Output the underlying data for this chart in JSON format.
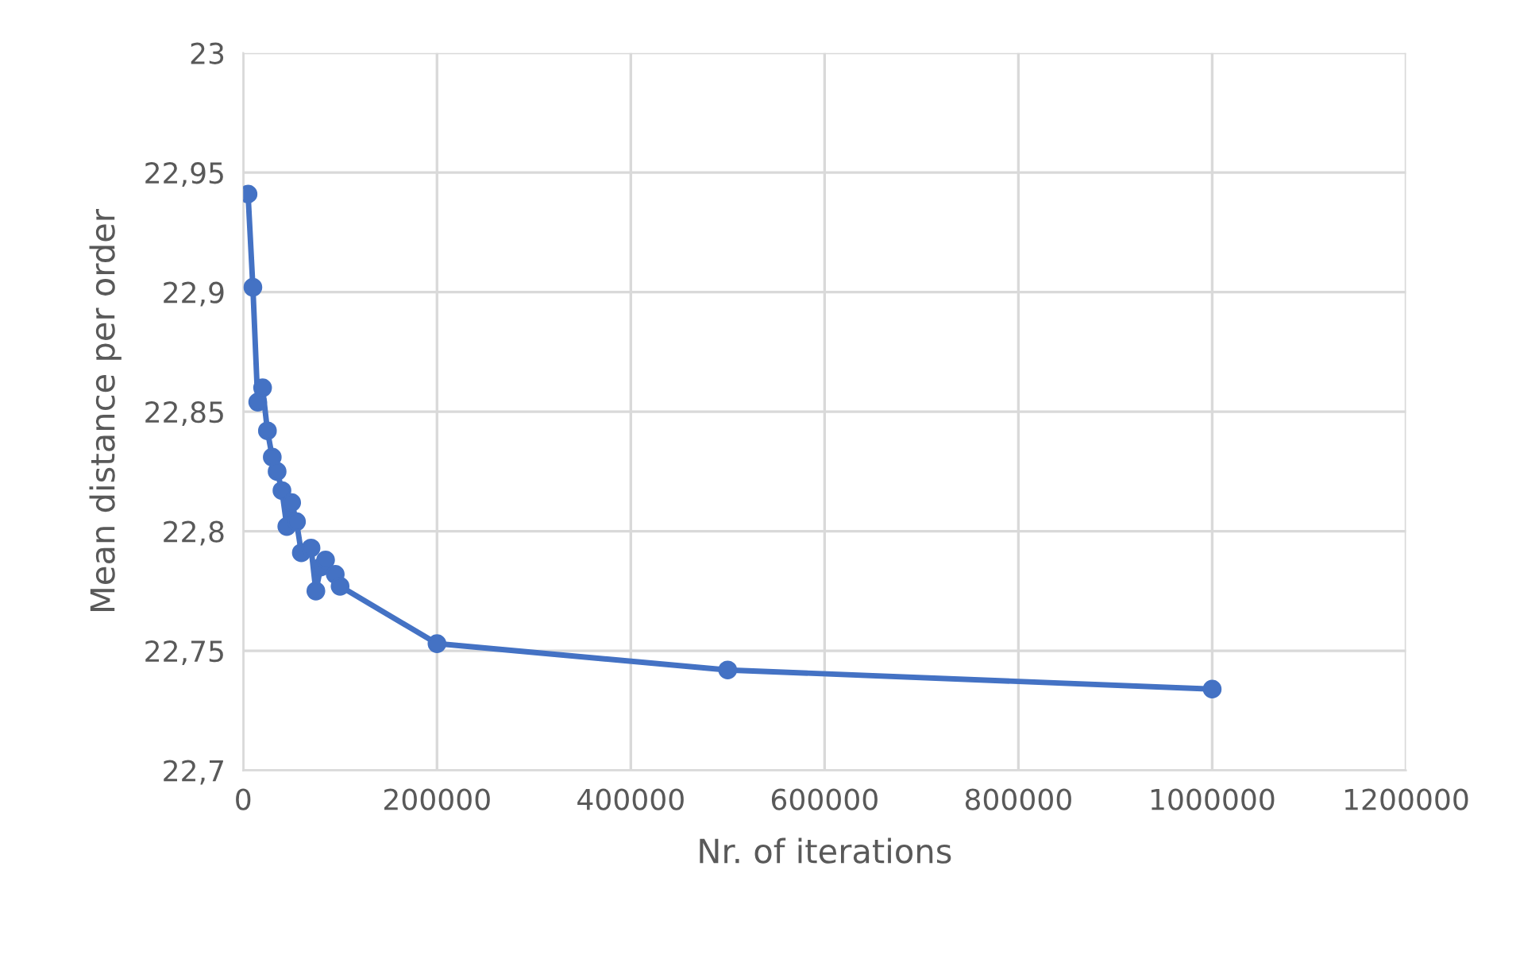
{
  "chart_data": {
    "type": "line",
    "xlabel": "Nr. of iterations",
    "ylabel": "Mean distance per order",
    "x": [
      5000,
      10000,
      15000,
      20000,
      25000,
      30000,
      35000,
      40000,
      45000,
      50000,
      55000,
      60000,
      70000,
      75000,
      80000,
      85000,
      95000,
      100000,
      200000,
      500000,
      1000000
    ],
    "series": [
      {
        "color": "#4472c4",
        "values": [
          22.941,
          22.902,
          22.854,
          22.86,
          22.842,
          22.831,
          22.825,
          22.817,
          22.802,
          22.812,
          22.804,
          22.791,
          22.793,
          22.775,
          22.785,
          22.788,
          22.782,
          22.777,
          22.753,
          22.742,
          22.734
        ]
      }
    ],
    "xlim": [
      0,
      1200000
    ],
    "xticks": [
      0,
      200000,
      400000,
      600000,
      800000,
      1000000,
      1200000
    ],
    "ylim": [
      22.7,
      23
    ],
    "yticks": [
      {
        "value": 22.7,
        "label": "22,7"
      },
      {
        "value": 22.75,
        "label": "22,75"
      },
      {
        "value": 22.8,
        "label": "22,8"
      },
      {
        "value": 22.85,
        "label": "22,85"
      },
      {
        "value": 22.9,
        "label": "22,9"
      },
      {
        "value": 22.95,
        "label": "22,95"
      },
      {
        "value": 23,
        "label": "23"
      }
    ],
    "grid": true,
    "marker": "circle",
    "line_style": "solid"
  }
}
